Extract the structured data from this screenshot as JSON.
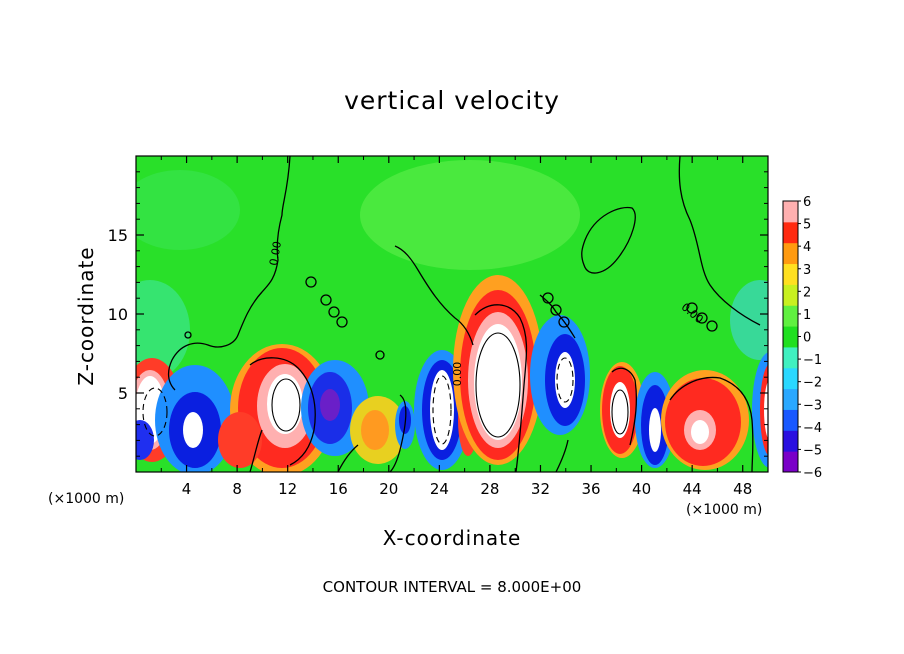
{
  "chart_data": {
    "type": "heatmap",
    "title": "vertical velocity",
    "xlabel": "X-coordinate",
    "ylabel": "Z-coordinate",
    "x_unit_label": "(×1000 m)",
    "xlim": [
      0,
      50
    ],
    "ylim": [
      0,
      20
    ],
    "x_ticks": [
      "4",
      "8",
      "12",
      "16",
      "20",
      "24",
      "28",
      "32",
      "36",
      "40",
      "44",
      "48"
    ],
    "y_ticks": [
      "5",
      "10",
      "15"
    ],
    "contour_labels": [
      "0.00",
      "0.00",
      "0.00"
    ],
    "colorbar": {
      "min": -6,
      "max": 6,
      "tick_labels": [
        "6",
        "5",
        "4",
        "3",
        "2",
        "1",
        "0",
        "−1",
        "−2",
        "−3",
        "−4",
        "−5",
        "−6"
      ]
    },
    "features": [
      {
        "x": 29.2,
        "z": 5.5,
        "w": 6.0,
        "type": "updraft"
      },
      {
        "x": 11.6,
        "z": 4.5,
        "w": 6.0,
        "type": "updraft"
      },
      {
        "x": 44.5,
        "z": 3.0,
        "w": 6.0,
        "type": "updraft"
      },
      {
        "x": 38.7,
        "z": 4.0,
        "w": 6.0,
        "type": "updraft"
      },
      {
        "x": 0.8,
        "z": 4.2,
        "w": 6.0,
        "type": "updraft"
      },
      {
        "x": 24.2,
        "z": 4.8,
        "w": -6.0,
        "type": "downdraft"
      },
      {
        "x": 33.8,
        "z": 5.5,
        "w": -6.0,
        "type": "downdraft"
      },
      {
        "x": 16.5,
        "z": 4.0,
        "w": -5.0,
        "type": "downdraft"
      },
      {
        "x": 40.8,
        "z": 3.0,
        "w": -6.0,
        "type": "downdraft"
      },
      {
        "x": 4.5,
        "z": 3.0,
        "w": -5.0,
        "type": "downdraft"
      }
    ]
  },
  "contour_interval_text": "CONTOUR INTERVAL = 8.000E+00",
  "colors": {
    "background_field": "#29e029",
    "contour": "#000000"
  }
}
